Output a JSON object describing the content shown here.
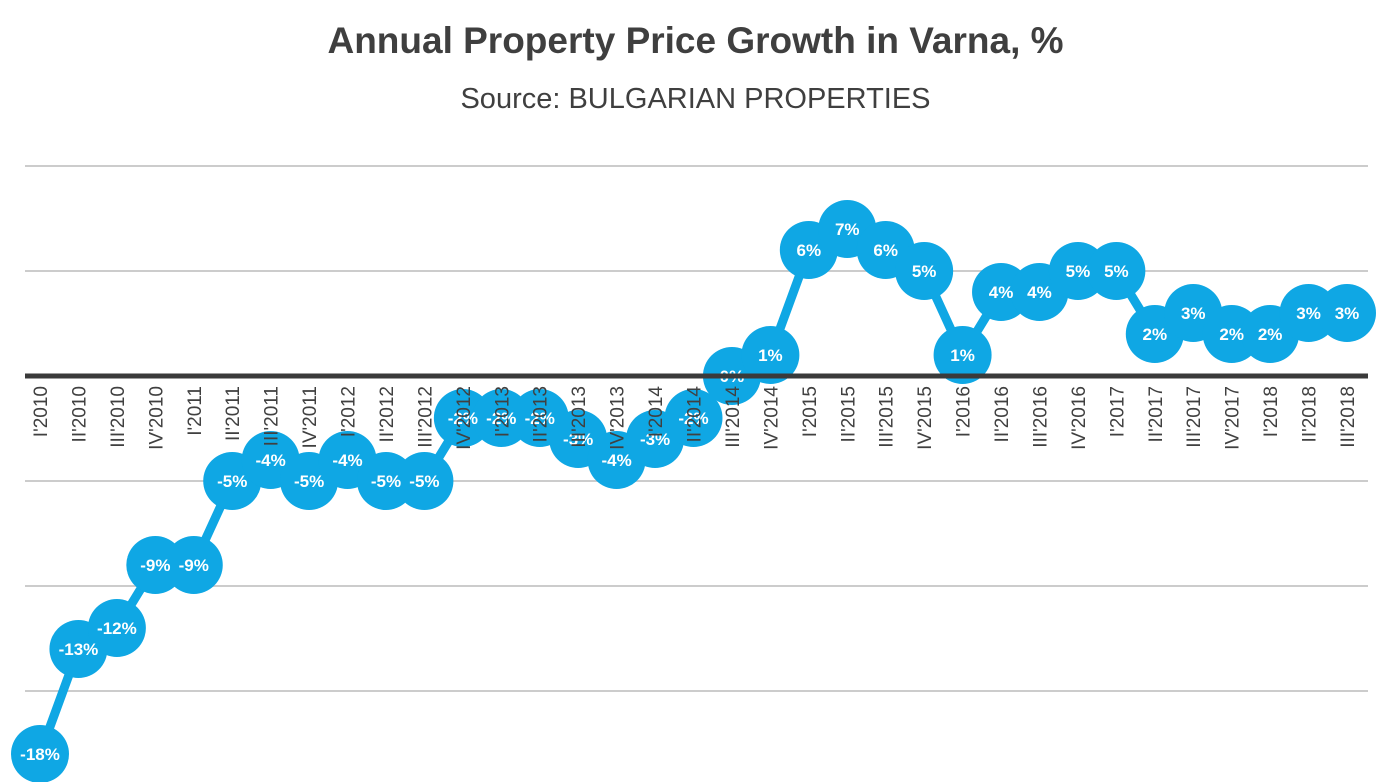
{
  "chart": {
    "title": "Annual Property Price Growth in Varna, %",
    "subtitle": "Source: BULGARIAN PROPERTIES"
  },
  "chart_data": {
    "type": "line",
    "title": "Annual Property Price Growth in Varna, %",
    "subtitle": "Source: BULGARIAN PROPERTIES",
    "xlabel": "",
    "ylabel": "",
    "legend": "none",
    "grid": "horizontal",
    "ylim": [
      -20,
      10
    ],
    "gridline_values": [
      10,
      5,
      0,
      -5,
      -10,
      -15
    ],
    "zero_axis_value": 0,
    "marker_color": "#0fa7e4",
    "line_color": "#0fa7e4",
    "label_color": "#ffffff",
    "axis_text_color": "#404040",
    "categories": [
      "I'2010",
      "II'2010",
      "III'2010",
      "IV'2010",
      "I'2011",
      "II'2011",
      "III'2011",
      "IV'2011",
      "I'2012",
      "II'2012",
      "III'2012",
      "IV'2012",
      "I'2013",
      "II'2013",
      "III'2013",
      "IV'2013",
      "I'2014",
      "II'2014",
      "III'2014",
      "IV'2014",
      "I'2015",
      "II'2015",
      "III'2015",
      "IV'2015",
      "I'2016",
      "II'2016",
      "III'2016",
      "IV'2016",
      "I'2017",
      "II'2017",
      "III'2017",
      "IV'2017",
      "I'2018",
      "II'2018",
      "III'2018"
    ],
    "values": [
      -18,
      -13,
      -12,
      -9,
      -9,
      -5,
      -4,
      -5,
      -4,
      -5,
      -5,
      -2,
      -2,
      -2,
      -3,
      -4,
      -3,
      -2,
      0,
      1,
      6,
      7,
      6,
      5,
      1,
      4,
      4,
      5,
      5,
      2,
      3,
      2,
      2,
      3,
      3
    ],
    "point_labels": [
      "-18%",
      "-13%",
      "-12%",
      "-9%",
      "-9%",
      "-5%",
      "-4%",
      "-5%",
      "-4%",
      "-5%",
      "-5%",
      "-2%",
      "-2%",
      "-2%",
      "-3%",
      "-4%",
      "-3%",
      "-2%",
      "0%",
      "1%",
      "6%",
      "7%",
      "6%",
      "5%",
      "1%",
      "4%",
      "4%",
      "5%",
      "5%",
      "2%",
      "3%",
      "2%",
      "2%",
      "3%",
      "3%"
    ]
  }
}
